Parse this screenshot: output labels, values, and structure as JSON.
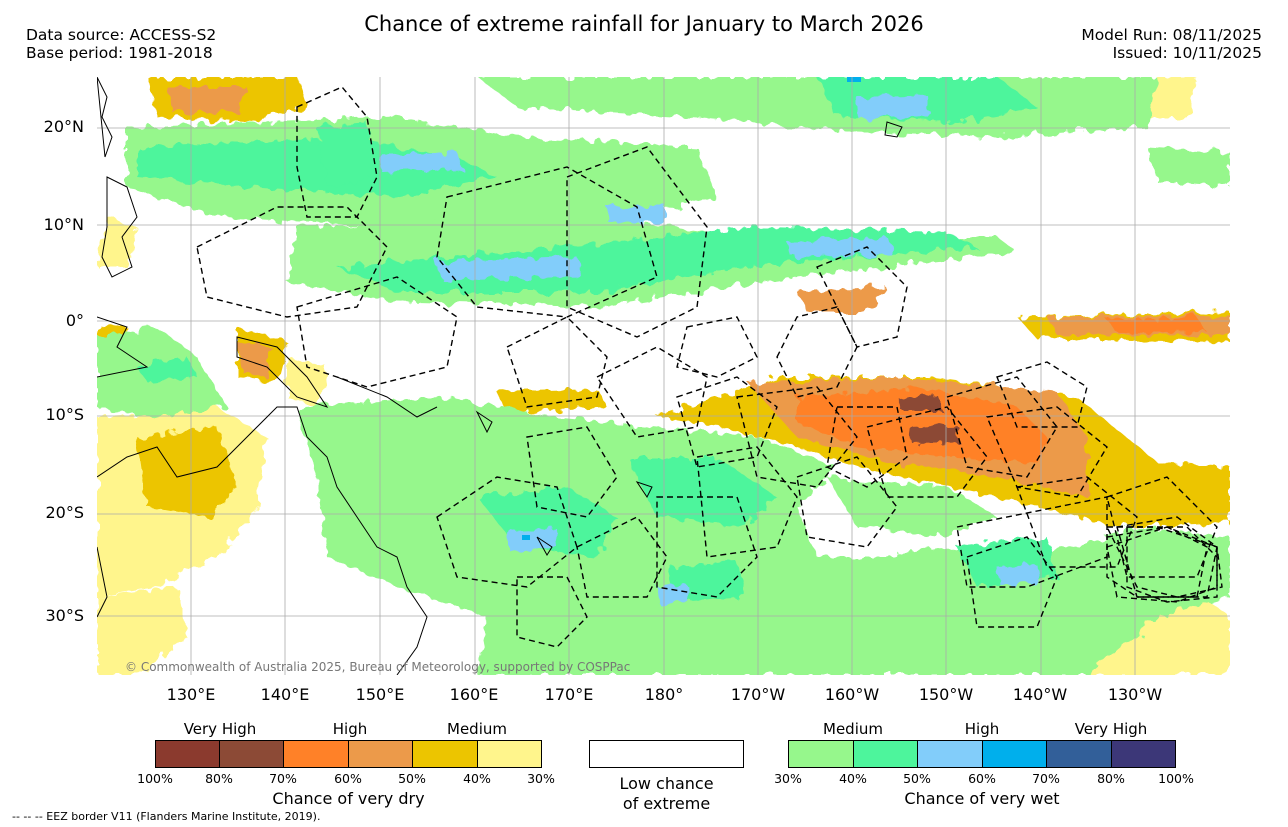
{
  "title": "Chance of extreme rainfall for January to March 2026",
  "header_left": {
    "source": "Data source: ACCESS-S2",
    "base": "Base period: 1981-2018"
  },
  "header_right": {
    "model_run": "Model Run: 08/11/2025",
    "issued": "Issued: 10/11/2025"
  },
  "lat_labels": [
    "20°N",
    "10°N",
    "0°",
    "10°S",
    "20°S",
    "30°S"
  ],
  "lon_labels": [
    "130°E",
    "140°E",
    "150°E",
    "160°E",
    "170°E",
    "180°",
    "170°W",
    "160°W",
    "150°W",
    "140°W",
    "130°W"
  ],
  "copyright": "© Commonwealth of Australia 2025, Bureau of Meteorology, supported by COSPPac",
  "legend_dry": {
    "headings": [
      "Very High",
      "High",
      "Medium"
    ],
    "ticks": [
      "100%",
      "80%",
      "70%",
      "60%",
      "50%",
      "40%",
      "30%"
    ],
    "colors": [
      "#8b3a2e",
      "#8c4a36",
      "#ff8128",
      "#ec9a4a",
      "#ecc500",
      "#fff58c"
    ],
    "caption": "Chance of very dry"
  },
  "legend_low": {
    "line1": "Low chance",
    "line2": "of extreme"
  },
  "legend_wet": {
    "headings": [
      "Medium",
      "High",
      "Very High"
    ],
    "ticks": [
      "30%",
      "40%",
      "50%",
      "60%",
      "70%",
      "80%",
      "100%"
    ],
    "colors": [
      "#96f78c",
      "#4df59c",
      "#82cdfa",
      "#00afec",
      "#325f99",
      "#3c3778"
    ],
    "caption": "Chance of very wet"
  },
  "footnote": "-- -- -- EEZ border V11 (Flanders Marine Institute, 2019)."
}
